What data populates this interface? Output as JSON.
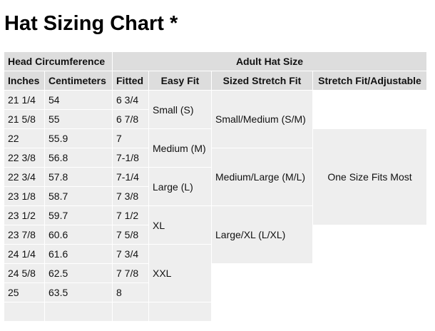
{
  "title": "Hat Sizing Chart *",
  "table": {
    "group_headers": [
      "Head Circumference",
      "Adult Hat Size"
    ],
    "columns": [
      "Inches",
      "Centimeters",
      "Fitted",
      "Easy Fit",
      "Sized Stretch Fit",
      "Stretch Fit/Adjustable"
    ],
    "rows": [
      [
        "21 1/4",
        "54",
        "6 3/4"
      ],
      [
        "21 5/8",
        "55",
        "6 7/8"
      ],
      [
        "22",
        "55.9",
        "7"
      ],
      [
        "22 3/8",
        "56.8",
        "7-1/8"
      ],
      [
        "22 3/4",
        "57.8",
        "7-1/4"
      ],
      [
        "23 1/8",
        "58.7",
        "7 3/8"
      ],
      [
        "23 1/2",
        "59.7",
        "7 1/2"
      ],
      [
        "23 7/8",
        "60.6",
        "7 5/8"
      ],
      [
        "24 1/4",
        "61.6",
        "7 3/4"
      ],
      [
        "24 5/8",
        "62.5",
        "7 7/8"
      ],
      [
        "25",
        "63.5",
        "8"
      ],
      [
        "",
        "",
        ""
      ]
    ],
    "easy_fit": [
      "Small (S)",
      "Medium (M)",
      "Large (L)",
      "XL",
      "XXL",
      ""
    ],
    "sized_stretch_fit": [
      "Small/Medium (S/M)",
      "Medium/Large (M/L)",
      "Large/XL (L/XL)"
    ],
    "stretch_fit_adjustable": [
      "One Size Fits Most"
    ]
  }
}
